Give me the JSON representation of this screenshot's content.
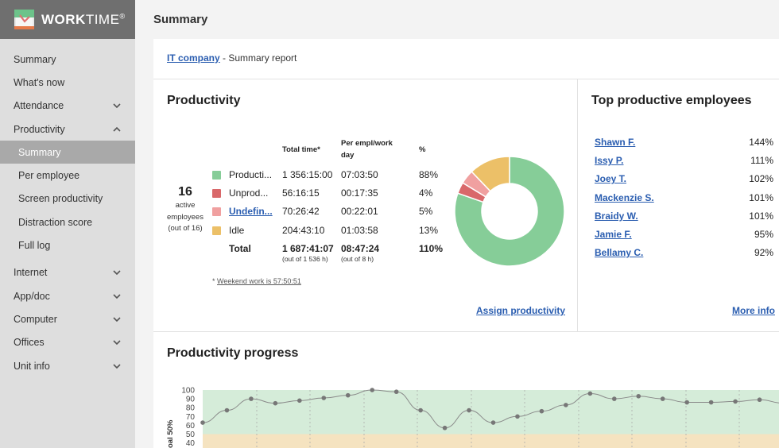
{
  "app": {
    "logo_text_bold": "WORK",
    "logo_text_light": "TIME",
    "logo_mark": "®",
    "logo_icon": "worktime-logo-icon"
  },
  "sidebar": {
    "items": [
      {
        "label": "Summary"
      },
      {
        "label": "What's now"
      },
      {
        "label": "Attendance",
        "icon": "chevron-down-icon"
      },
      {
        "label": "Productivity",
        "icon": "chevron-up-icon"
      },
      {
        "label": "Summary",
        "active": true
      },
      {
        "label": "Per employee"
      },
      {
        "label": "Screen productivity"
      },
      {
        "label": "Distraction score"
      },
      {
        "label": "Full log"
      },
      {
        "label": "Internet",
        "icon": "chevron-down-icon"
      },
      {
        "label": "App/doc",
        "icon": "chevron-down-icon"
      },
      {
        "label": "Computer",
        "icon": "chevron-down-icon"
      },
      {
        "label": "Offices",
        "icon": "chevron-down-icon"
      },
      {
        "label": "Unit info",
        "icon": "chevron-down-icon"
      }
    ]
  },
  "header": {
    "title": "Summary"
  },
  "breadcrumb": {
    "company": "IT company",
    "rest": " - Summary report"
  },
  "productivity": {
    "title": "Productivity",
    "active_count": "16",
    "active_label_1": "active",
    "active_label_2": "employees",
    "active_label_3": "(out of 16)",
    "headers": {
      "total_time": "Total time*",
      "per_empl_1": "Per empl/work",
      "per_empl_2": "day",
      "percent": "%"
    },
    "rows": [
      {
        "category": "Producti...",
        "total": "1 356:15:00",
        "per_empl": "07:03:50",
        "percent": "88%",
        "color": "#86cd98"
      },
      {
        "category": "Unprod...",
        "total": "56:16:15",
        "per_empl": "00:17:35",
        "percent": "4%",
        "color": "#d9686a"
      },
      {
        "category": "Undefin...",
        "total": "70:26:42",
        "per_empl": "00:22:01",
        "percent": "5%",
        "color": "#f0a0a0",
        "link": true
      },
      {
        "category": "Idle",
        "total": "204:43:10",
        "per_empl": "01:03:58",
        "percent": "13%",
        "color": "#ecc068"
      }
    ],
    "total": {
      "label": "Total",
      "total": "1 687:41:07",
      "total_sub": "(out of 1 536 h)",
      "per_empl": "08:47:24",
      "per_empl_sub": "(out of 8 h)",
      "percent": "110%"
    },
    "weekend_prefix": "* ",
    "weekend_text": "Weekend work is 57:50:51",
    "assign_link": "Assign productivity"
  },
  "top_employees": {
    "title": "Top productive employees",
    "rows": [
      {
        "name": "Shawn F.",
        "value": "144%"
      },
      {
        "name": "Issy P.",
        "value": "111%"
      },
      {
        "name": "Joey T.",
        "value": "102%"
      },
      {
        "name": "Mackenzie S.",
        "value": "101%"
      },
      {
        "name": "Braidy W.",
        "value": "101%"
      },
      {
        "name": "Jamie F.",
        "value": "95%"
      },
      {
        "name": "Bellamy C.",
        "value": "92%"
      }
    ],
    "more_link": "More info"
  },
  "progress": {
    "title": "Productivity progress",
    "ylabel": "oal 50%"
  },
  "chart_data": [
    {
      "type": "pie",
      "categories": [
        "Productive",
        "Unproductive",
        "Undefined",
        "Idle"
      ],
      "values": [
        1356.25,
        56.27,
        70.45,
        204.72
      ],
      "colors": [
        "#86cd98",
        "#d9686a",
        "#f0a0a0",
        "#ecc068"
      ],
      "donut": true
    },
    {
      "type": "line",
      "y_ticks": [
        100,
        90,
        80,
        70,
        60,
        50,
        40
      ],
      "ylim": [
        40,
        100
      ],
      "goal": 50,
      "values": [
        63,
        77,
        90,
        85,
        88,
        91,
        94,
        100,
        98,
        77,
        57,
        77,
        63,
        70,
        76,
        83,
        96,
        90,
        93,
        90,
        86,
        86,
        87,
        89,
        85
      ]
    }
  ]
}
